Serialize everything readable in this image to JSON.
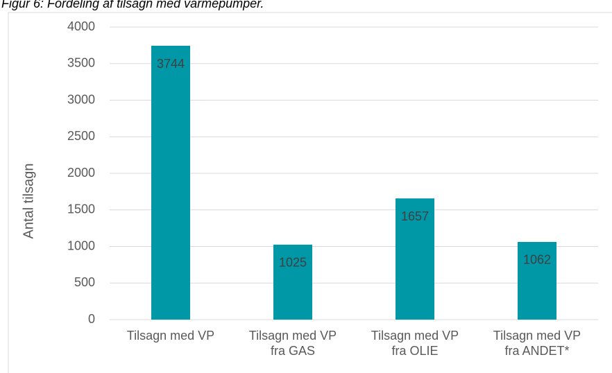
{
  "chart_data": {
    "type": "bar",
    "title": "Figur 6: Fordeling af tilsagn med varmepumper.",
    "y_label": "Antal tilsagn",
    "categories": [
      "Tilsagn med VP",
      "Tilsagn med VP\nfra GAS",
      "Tilsagn med VP\nfra OLIE",
      "Tilsagn med VP\nfra ANDET*"
    ],
    "values": [
      3744,
      1025,
      1657,
      1062
    ],
    "color": "#0097a6",
    "ylim": [
      0,
      4000
    ],
    "yticks": [
      0,
      500,
      1000,
      1500,
      2000,
      2500,
      3000,
      3500,
      4000
    ],
    "grid": true
  }
}
